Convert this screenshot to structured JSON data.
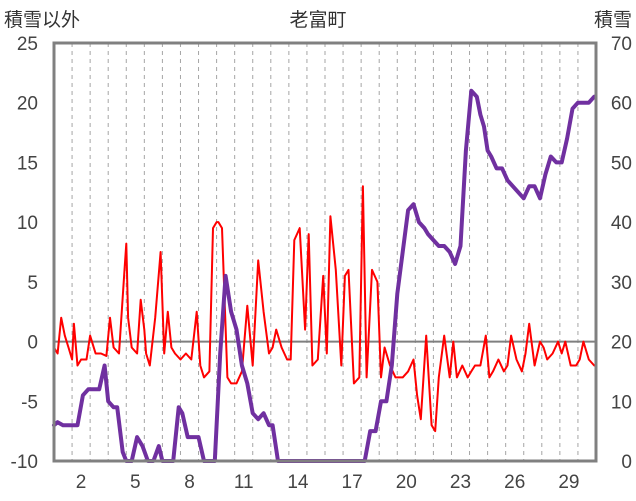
{
  "chart_data": {
    "type": "line",
    "title": "老富町",
    "ylabel_left": "積雪以外",
    "ylabel_right": "積雪",
    "x_range": [
      1,
      31
    ],
    "x_ticks": [
      2,
      5,
      8,
      11,
      14,
      17,
      20,
      23,
      26,
      29
    ],
    "ylim_left": [
      -10,
      25
    ],
    "yticks_left": [
      25,
      20,
      15,
      10,
      5,
      0,
      -5,
      -10
    ],
    "ylim_right": [
      0,
      70
    ],
    "yticks_right": [
      70,
      60,
      50,
      40,
      30,
      20,
      10,
      0
    ],
    "grid": "dashed vertical lines at each day",
    "zero_line": true,
    "series": [
      {
        "axis": "left",
        "color": "#ff0000",
        "x": [
          1.0,
          1.2,
          1.4,
          1.6,
          1.8,
          2.0,
          2.1,
          2.3,
          2.5,
          2.8,
          3.0,
          3.3,
          3.6,
          3.9,
          4.1,
          4.3,
          4.6,
          4.9,
          5.0,
          5.1,
          5.3,
          5.6,
          5.8,
          6.0,
          6.1,
          6.3,
          6.6,
          6.9,
          7.1,
          7.3,
          7.5,
          7.7,
          8.0,
          8.3,
          8.6,
          8.9,
          9.1,
          9.3,
          9.6,
          9.8,
          10.0,
          10.1,
          10.3,
          10.6,
          10.8,
          11.1,
          11.4,
          11.7,
          12.0,
          12.3,
          12.6,
          12.9,
          13.1,
          13.3,
          13.6,
          13.9,
          14.1,
          14.3,
          14.6,
          14.9,
          15.1,
          15.3,
          15.6,
          15.9,
          16.1,
          16.3,
          16.6,
          16.9,
          17.1,
          17.3,
          17.6,
          17.9,
          18.1,
          18.3,
          18.6,
          18.9,
          19.1,
          19.3,
          19.6,
          19.9,
          20.1,
          20.3,
          20.6,
          20.9,
          21.1,
          21.3,
          21.6,
          21.9,
          22.1,
          22.3,
          22.6,
          22.9,
          23.1,
          23.3,
          23.6,
          23.9,
          24.1,
          24.3,
          24.6,
          24.9,
          25.1,
          25.3,
          25.6,
          25.9,
          26.1,
          26.3,
          26.6,
          26.9,
          27.1,
          27.3,
          27.6,
          27.9,
          28.1,
          28.3,
          28.6,
          28.9,
          29.1,
          29.3,
          29.6,
          29.9,
          30.1,
          30.3,
          30.6,
          30.9
        ],
        "values": [
          -0.5,
          -1,
          2,
          0.5,
          -0.5,
          -1.5,
          1.5,
          -2,
          -1.5,
          -1.5,
          0.5,
          -1,
          -1,
          -1.2,
          2,
          -0.5,
          -1,
          6,
          8.2,
          2,
          -0.5,
          -1,
          3.5,
          1,
          -1,
          -2,
          2,
          7.5,
          -1,
          2.5,
          -0.5,
          -1,
          -1.5,
          -1,
          -1.5,
          2.5,
          -2,
          -3,
          -2.5,
          9.5,
          10,
          10,
          9.5,
          -3,
          -3.5,
          -3.5,
          -2.5,
          3,
          -2,
          6.8,
          2.5,
          -1,
          -0.5,
          1,
          -0.5,
          -1.5,
          -1.5,
          8.5,
          9.5,
          1,
          9,
          -2,
          -1.5,
          5.5,
          -1,
          10.5,
          6,
          -2,
          5.5,
          6,
          -3.5,
          -3,
          13,
          -3,
          6,
          5,
          -3,
          -0.5,
          -2,
          -3,
          -3,
          -3,
          -2.5,
          -1.5,
          -4.5,
          -6.5,
          0.5,
          -7,
          -7.5,
          -3,
          0.5,
          -3,
          0,
          -3,
          -2,
          -3,
          -2.5,
          -2,
          -2,
          0.5,
          -3,
          -2.5,
          -1.5,
          -2.5,
          -2,
          0.5,
          -1.5,
          -2.5,
          -1,
          1.5,
          -2,
          0,
          -0.5,
          -1.5,
          -1,
          0,
          -1,
          0,
          -2,
          -2,
          -1.5,
          0,
          -1.5,
          -2
        ]
      },
      {
        "axis": "right",
        "color": "#7030a0",
        "x": [
          1.0,
          1.2,
          1.5,
          1.8,
          2.0,
          2.3,
          2.6,
          2.9,
          3.2,
          3.5,
          3.8,
          4.0,
          4.3,
          4.5,
          4.8,
          5.0,
          5.3,
          5.6,
          5.9,
          6.2,
          6.5,
          6.8,
          7.0,
          7.3,
          7.6,
          7.9,
          8.1,
          8.4,
          8.7,
          9.0,
          9.3,
          9.6,
          9.9,
          10.2,
          10.5,
          10.8,
          11.1,
          11.4,
          11.7,
          12.0,
          12.3,
          12.6,
          12.9,
          13.1,
          13.4,
          13.7,
          14.0,
          14.3,
          14.6,
          14.9,
          15.2,
          15.5,
          15.8,
          16.1,
          16.4,
          16.7,
          17.0,
          17.3,
          17.6,
          17.9,
          18.2,
          18.5,
          18.8,
          19.1,
          19.4,
          19.7,
          20.0,
          20.3,
          20.6,
          20.9,
          21.2,
          21.5,
          21.7,
          22.0,
          22.3,
          22.6,
          22.9,
          23.2,
          23.5,
          23.8,
          24.1,
          24.4,
          24.6,
          24.8,
          25.0,
          25.2,
          25.5,
          25.8,
          26.1,
          26.4,
          26.7,
          27.0,
          27.3,
          27.6,
          27.9,
          28.2,
          28.5,
          28.8,
          29.1,
          29.4,
          29.7,
          30.0,
          30.3,
          30.6,
          30.9
        ],
        "values": [
          6,
          6.5,
          6,
          6,
          6,
          6,
          11,
          12,
          12,
          12,
          16,
          10,
          9,
          9,
          1.5,
          0,
          0,
          4,
          2.5,
          0,
          0,
          2.5,
          0,
          0,
          0,
          9,
          8,
          4,
          4,
          4,
          0,
          0,
          0,
          18,
          31,
          25,
          22,
          16,
          13,
          8,
          7,
          8,
          6,
          6,
          0,
          0,
          0,
          0,
          0,
          0,
          0,
          0,
          0,
          0,
          0,
          0,
          0,
          0,
          0,
          0,
          0,
          5,
          5,
          10,
          10,
          16,
          28,
          35,
          42,
          43,
          40,
          39,
          38,
          37,
          36,
          36,
          35,
          33,
          36,
          52,
          62,
          61,
          58,
          56,
          52,
          51,
          49,
          49,
          47,
          46,
          45,
          44,
          46,
          46,
          44,
          48,
          51,
          50,
          50,
          54,
          59,
          60,
          60,
          60,
          61
        ]
      }
    ]
  }
}
